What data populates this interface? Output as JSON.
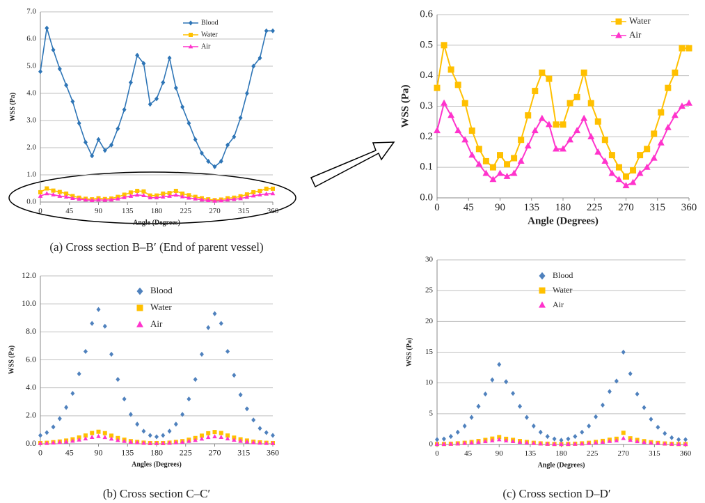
{
  "chart_data": [
    {
      "type": "line",
      "caption": "(a) Cross section B–B′ (End of parent vessel)",
      "x_label": "Angle (Degrees)",
      "y_label": "WSS (Pa)",
      "x": [
        0,
        10,
        20,
        30,
        40,
        50,
        60,
        70,
        80,
        90,
        100,
        110,
        120,
        130,
        140,
        150,
        160,
        170,
        180,
        190,
        200,
        210,
        220,
        230,
        240,
        250,
        260,
        270,
        280,
        290,
        300,
        310,
        320,
        330,
        340,
        350,
        360
      ],
      "series": [
        {
          "name": "Blood",
          "color": "#2e75b6",
          "marker": "diamond",
          "values": [
            4.8,
            6.4,
            5.6,
            4.9,
            4.3,
            3.7,
            2.9,
            2.2,
            1.7,
            2.3,
            1.9,
            2.1,
            2.7,
            3.4,
            4.4,
            5.4,
            5.1,
            3.6,
            3.8,
            4.4,
            5.3,
            4.2,
            3.5,
            2.9,
            2.3,
            1.8,
            1.5,
            1.3,
            1.5,
            2.1,
            2.4,
            3.1,
            4.0,
            5.0,
            5.3,
            6.3,
            6.3
          ]
        },
        {
          "name": "Water",
          "color": "#ffc000",
          "marker": "square",
          "values": [
            0.36,
            0.5,
            0.42,
            0.37,
            0.31,
            0.22,
            0.16,
            0.12,
            0.1,
            0.14,
            0.11,
            0.13,
            0.19,
            0.27,
            0.35,
            0.41,
            0.39,
            0.24,
            0.24,
            0.31,
            0.33,
            0.41,
            0.31,
            0.25,
            0.19,
            0.14,
            0.1,
            0.07,
            0.09,
            0.14,
            0.16,
            0.21,
            0.28,
            0.36,
            0.41,
            0.49,
            0.49
          ]
        },
        {
          "name": "Air",
          "color": "#ff33cc",
          "marker": "triangle",
          "values": [
            0.22,
            0.31,
            0.27,
            0.22,
            0.19,
            0.14,
            0.11,
            0.08,
            0.06,
            0.08,
            0.07,
            0.08,
            0.12,
            0.17,
            0.22,
            0.26,
            0.24,
            0.16,
            0.16,
            0.19,
            0.22,
            0.26,
            0.2,
            0.15,
            0.12,
            0.08,
            0.06,
            0.04,
            0.05,
            0.08,
            0.1,
            0.13,
            0.18,
            0.23,
            0.27,
            0.3,
            0.31
          ]
        }
      ],
      "xlim": [
        0,
        360
      ],
      "xticks": [
        0,
        45,
        90,
        135,
        180,
        225,
        270,
        315,
        360
      ],
      "ylim": [
        0,
        7
      ],
      "yticks": [
        {
          "value": 0,
          "label": "0.0"
        },
        {
          "value": 1,
          "label": "1.0"
        },
        {
          "value": 2,
          "label": "2.0"
        },
        {
          "value": 3,
          "label": "3.0"
        },
        {
          "value": 4,
          "label": "4.0"
        },
        {
          "value": 5,
          "label": "5.0"
        },
        {
          "value": 6,
          "label": "6.0"
        },
        {
          "value": 7,
          "label": "7.0"
        }
      ],
      "grid": true
    },
    {
      "type": "line",
      "x_label": "Angle (Degrees)",
      "y_label": "WSS (Pa)",
      "x": [
        0,
        10,
        20,
        30,
        40,
        50,
        60,
        70,
        80,
        90,
        100,
        110,
        120,
        130,
        140,
        150,
        160,
        170,
        180,
        190,
        200,
        210,
        220,
        230,
        240,
        250,
        260,
        270,
        280,
        290,
        300,
        310,
        320,
        330,
        340,
        350,
        360
      ],
      "series": [
        {
          "name": "Water",
          "color": "#ffc000",
          "marker": "square",
          "values": [
            0.36,
            0.5,
            0.42,
            0.37,
            0.31,
            0.22,
            0.16,
            0.12,
            0.1,
            0.14,
            0.11,
            0.13,
            0.19,
            0.27,
            0.35,
            0.41,
            0.39,
            0.24,
            0.24,
            0.31,
            0.33,
            0.41,
            0.31,
            0.25,
            0.19,
            0.14,
            0.1,
            0.07,
            0.09,
            0.14,
            0.16,
            0.21,
            0.28,
            0.36,
            0.41,
            0.49,
            0.49
          ]
        },
        {
          "name": "Air",
          "color": "#ff33cc",
          "marker": "triangle",
          "values": [
            0.22,
            0.31,
            0.27,
            0.22,
            0.19,
            0.14,
            0.11,
            0.08,
            0.06,
            0.08,
            0.07,
            0.08,
            0.12,
            0.17,
            0.22,
            0.26,
            0.24,
            0.16,
            0.16,
            0.19,
            0.22,
            0.26,
            0.2,
            0.15,
            0.12,
            0.08,
            0.06,
            0.04,
            0.05,
            0.08,
            0.1,
            0.13,
            0.18,
            0.23,
            0.27,
            0.3,
            0.31
          ]
        }
      ],
      "xlim": [
        0,
        360
      ],
      "xticks": [
        0,
        45,
        90,
        135,
        180,
        225,
        270,
        315,
        360
      ],
      "ylim": [
        0,
        0.6
      ],
      "yticks": [
        {
          "value": 0,
          "label": "0.0"
        },
        0.1,
        0.2,
        0.3,
        0.4,
        0.5,
        0.6
      ],
      "grid": true
    },
    {
      "type": "scatter",
      "caption": "(b) Cross section C–C′",
      "x_label": "Angles (Degrees)",
      "y_label": "WSS (Pa)",
      "x": [
        0,
        10,
        20,
        30,
        40,
        50,
        60,
        70,
        80,
        90,
        100,
        110,
        120,
        130,
        140,
        150,
        160,
        170,
        180,
        190,
        200,
        210,
        220,
        230,
        240,
        250,
        260,
        270,
        280,
        290,
        300,
        310,
        320,
        330,
        340,
        350,
        360
      ],
      "series": [
        {
          "name": "Blood",
          "color": "#4f81bd",
          "marker": "diamond",
          "values": [
            0.6,
            0.8,
            1.2,
            1.8,
            2.6,
            3.6,
            5.0,
            6.6,
            8.6,
            9.6,
            8.4,
            6.4,
            4.6,
            3.2,
            2.1,
            1.4,
            0.9,
            0.6,
            0.5,
            0.6,
            0.9,
            1.4,
            2.1,
            3.2,
            4.6,
            6.4,
            8.3,
            9.3,
            8.6,
            6.6,
            4.9,
            3.5,
            2.5,
            1.7,
            1.1,
            0.8,
            0.6
          ]
        },
        {
          "name": "Water",
          "color": "#ffc000",
          "marker": "square",
          "values": [
            0.05,
            0.07,
            0.11,
            0.16,
            0.23,
            0.32,
            0.45,
            0.59,
            0.77,
            0.86,
            0.76,
            0.58,
            0.41,
            0.29,
            0.19,
            0.13,
            0.08,
            0.05,
            0.05,
            0.05,
            0.08,
            0.13,
            0.19,
            0.29,
            0.41,
            0.58,
            0.75,
            0.84,
            0.77,
            0.59,
            0.44,
            0.32,
            0.23,
            0.15,
            0.1,
            0.07,
            0.05
          ]
        },
        {
          "name": "Air",
          "color": "#ff33cc",
          "marker": "triangle",
          "values": [
            0.03,
            0.04,
            0.07,
            0.1,
            0.14,
            0.2,
            0.28,
            0.36,
            0.47,
            0.53,
            0.46,
            0.35,
            0.25,
            0.18,
            0.12,
            0.08,
            0.05,
            0.03,
            0.03,
            0.03,
            0.05,
            0.08,
            0.12,
            0.18,
            0.25,
            0.35,
            0.46,
            0.51,
            0.47,
            0.36,
            0.27,
            0.19,
            0.14,
            0.09,
            0.06,
            0.04,
            0.03
          ]
        }
      ],
      "xlim": [
        0,
        360
      ],
      "xticks": [
        0,
        45,
        90,
        135,
        180,
        225,
        270,
        315,
        360
      ],
      "ylim": [
        0,
        12
      ],
      "yticks": [
        {
          "value": 0,
          "label": "0.0"
        },
        {
          "value": 2,
          "label": "2.0"
        },
        {
          "value": 4,
          "label": "4.0"
        },
        {
          "value": 6,
          "label": "6.0"
        },
        {
          "value": 8,
          "label": "8.0"
        },
        {
          "value": 10,
          "label": "10.0"
        },
        {
          "value": 12,
          "label": "12.0"
        }
      ],
      "grid": true
    },
    {
      "type": "scatter",
      "caption": "(c) Cross section D–D′",
      "x_label": "Angle (Degrees)",
      "y_label": "WSS (Pa)",
      "x": [
        0,
        10,
        20,
        30,
        40,
        50,
        60,
        70,
        80,
        90,
        100,
        110,
        120,
        130,
        140,
        150,
        160,
        170,
        180,
        190,
        200,
        210,
        220,
        230,
        240,
        250,
        260,
        270,
        280,
        290,
        300,
        310,
        320,
        330,
        340,
        350,
        360
      ],
      "series": [
        {
          "name": "Blood",
          "color": "#4f81bd",
          "marker": "diamond",
          "values": [
            0.8,
            0.9,
            1.3,
            2.0,
            3.0,
            4.4,
            6.2,
            8.2,
            10.5,
            13.0,
            10.2,
            8.3,
            6.2,
            4.4,
            3.0,
            2.0,
            1.3,
            0.9,
            0.7,
            0.9,
            1.3,
            2.0,
            3.0,
            4.5,
            6.4,
            8.6,
            10.3,
            15.0,
            11.5,
            8.2,
            6.0,
            4.1,
            2.8,
            1.8,
            1.1,
            0.8,
            0.8
          ]
        },
        {
          "name": "Water",
          "color": "#ffc000",
          "marker": "square",
          "values": [
            0.07,
            0.08,
            0.12,
            0.18,
            0.27,
            0.4,
            0.56,
            0.74,
            0.95,
            1.2,
            0.92,
            0.75,
            0.56,
            0.4,
            0.27,
            0.18,
            0.12,
            0.08,
            0.06,
            0.08,
            0.12,
            0.18,
            0.27,
            0.41,
            0.58,
            0.77,
            0.93,
            1.9,
            1.0,
            0.74,
            0.54,
            0.37,
            0.25,
            0.16,
            0.1,
            0.07,
            0.07
          ]
        },
        {
          "name": "Air",
          "color": "#ff33cc",
          "marker": "triangle",
          "values": [
            0.05,
            0.05,
            0.08,
            0.12,
            0.18,
            0.26,
            0.37,
            0.49,
            0.63,
            0.8,
            0.61,
            0.5,
            0.37,
            0.26,
            0.18,
            0.12,
            0.08,
            0.05,
            0.04,
            0.05,
            0.08,
            0.12,
            0.18,
            0.27,
            0.38,
            0.52,
            0.62,
            1.0,
            0.69,
            0.49,
            0.36,
            0.25,
            0.17,
            0.11,
            0.07,
            0.05,
            0.05
          ]
        }
      ],
      "xlim": [
        0,
        360
      ],
      "xticks": [
        0,
        45,
        90,
        135,
        180,
        225,
        270,
        315,
        360
      ],
      "ylim": [
        0,
        30
      ],
      "yticks": [
        0,
        5,
        10,
        15,
        20,
        25,
        30
      ],
      "grid": true
    }
  ]
}
